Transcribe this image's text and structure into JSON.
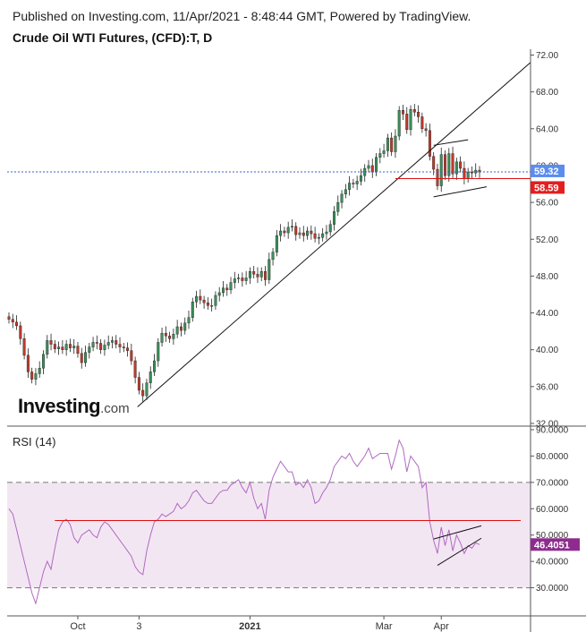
{
  "header": {
    "line1": "Published on Investing.com, 11/Apr/2021 - 8:48:44 GMT, Powered by TradingView.",
    "line2": "Crude Oil WTI Futures, (CFD):T, D"
  },
  "logo": {
    "brand": "Investing",
    "suffix": ".com"
  },
  "rsi_label": "RSI (14)",
  "colors": {
    "up": "#3b8f5a",
    "down": "#c0392b",
    "rsi": "#b06ac0",
    "rsi_band": "#f3e6f3",
    "price_badge": "#5b8def",
    "support_badge": "#e02020",
    "rsi_badge": "#8e2c8e"
  },
  "chart_data": [
    {
      "type": "candlestick",
      "title": "Crude Oil WTI Futures, (CFD):T, D",
      "ylim": [
        32,
        72
      ],
      "yticks": [
        "72.00",
        "68.00",
        "64.00",
        "60.00",
        "56.00",
        "52.00",
        "48.00",
        "44.00",
        "40.00",
        "36.00",
        "32.00"
      ],
      "xticks": [
        "Oct",
        "3",
        "2021",
        "Mar",
        "Apr"
      ],
      "current_price": {
        "value": 59.32,
        "label": "59.32"
      },
      "support_level": {
        "value": 58.59,
        "label": "58.59"
      },
      "close_series": [
        43.3,
        43.0,
        42.6,
        41.2,
        39.4,
        37.6,
        36.8,
        37.4,
        38.0,
        39.5,
        41.0,
        40.6,
        40.1,
        40.3,
        40.0,
        40.6,
        40.2,
        40.4,
        39.6,
        38.6,
        39.7,
        40.3,
        40.8,
        40.7,
        40.0,
        40.5,
        40.8,
        41.0,
        40.6,
        40.3,
        40.2,
        39.9,
        38.8,
        37.0,
        35.6,
        35.0,
        36.4,
        37.6,
        38.8,
        40.8,
        41.8,
        41.5,
        41.2,
        41.7,
        42.5,
        42.1,
        42.9,
        43.5,
        45.2,
        45.8,
        45.4,
        45.1,
        44.8,
        44.8,
        45.9,
        46.2,
        46.7,
        46.5,
        47.3,
        47.7,
        47.8,
        47.5,
        47.8,
        48.5,
        48.2,
        47.9,
        48.5,
        47.6,
        49.8,
        50.6,
        52.4,
        52.9,
        52.7,
        53.3,
        53.4,
        52.5,
        52.7,
        52.4,
        52.9,
        52.6,
        52.1,
        52.2,
        52.6,
        52.8,
        53.6,
        55.0,
        56.0,
        56.9,
        57.4,
        58.1,
        58.0,
        58.3,
        58.9,
        59.7,
        60.0,
        59.3,
        60.9,
        61.3,
        61.6,
        63.0,
        61.5,
        63.2,
        66.0,
        65.6,
        63.9,
        66.1,
        65.8,
        65.3,
        64.0,
        63.8,
        61.0,
        59.6,
        57.8,
        61.2,
        58.9,
        61.3,
        59.1,
        60.4,
        59.7,
        58.6,
        59.3,
        59.2,
        59.5,
        59.3
      ],
      "annotations": [
        "ascending trendline",
        "horizontal support line at 58.59",
        "symmetrical triangle/pennant"
      ]
    },
    {
      "type": "line",
      "title": "RSI (14)",
      "ylim": [
        20,
        90
      ],
      "yticks": [
        "90.0000",
        "80.0000",
        "70.0000",
        "60.0000",
        "50.0000",
        "40.0000",
        "30.0000"
      ],
      "band": [
        30,
        70
      ],
      "last_value": {
        "value": 46.4051,
        "label": "46.4051"
      },
      "horizontal_line": 55.5,
      "values": [
        60,
        58,
        52,
        46,
        40,
        34,
        28,
        24,
        30,
        36,
        40,
        37,
        45,
        52,
        55,
        56,
        54,
        49,
        47,
        50,
        51,
        52,
        50,
        49,
        53,
        55,
        54,
        52,
        50,
        48,
        46,
        44,
        42,
        38,
        36,
        35,
        44,
        50,
        55,
        56,
        58,
        57,
        58,
        59,
        62,
        60,
        61,
        63,
        66,
        67,
        65,
        63,
        62,
        62,
        64,
        66,
        67,
        67,
        69,
        70,
        71,
        68,
        66,
        70,
        64,
        60,
        62,
        56,
        67,
        72,
        75,
        78,
        76,
        74,
        74,
        69,
        70,
        68,
        71,
        68,
        62,
        63,
        66,
        68,
        71,
        76,
        78,
        80,
        79,
        81,
        78,
        76,
        78,
        80,
        83,
        79,
        80,
        81,
        81,
        81,
        75,
        80,
        86,
        83,
        74,
        80,
        78,
        76,
        68,
        70,
        55,
        48,
        43,
        53,
        46,
        52,
        44,
        50,
        47,
        43,
        46,
        45,
        47,
        46.4
      ]
    }
  ]
}
